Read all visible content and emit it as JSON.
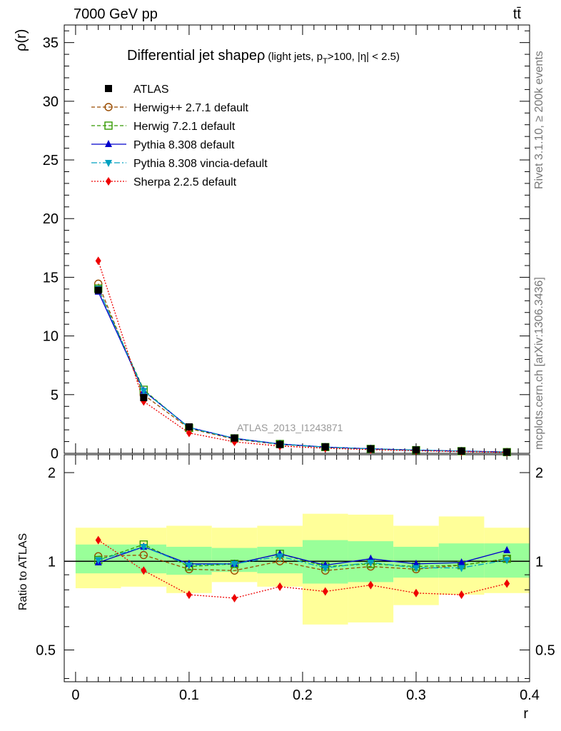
{
  "header": {
    "left": "7000 GeV pp",
    "right": "tt̄"
  },
  "side_text": {
    "rivet": "Rivet 3.1.10, ≥ 200k events",
    "mcplots": "mcplots.cern.ch [arXiv:1306.3436]"
  },
  "title": {
    "main": "Differential jet shape",
    "symbol": "ρ",
    "qualifier_pre": "(light jets, p",
    "qualifier_sub": "T",
    "qualifier_post": ">100, |η| < 2.5)"
  },
  "watermark": "ATLAS_2013_I1243871",
  "chart_data": {
    "type": "scatter",
    "x": [
      0.02,
      0.06,
      0.1,
      0.14,
      0.18,
      0.22,
      0.26,
      0.3,
      0.34,
      0.38
    ],
    "bin_edges": [
      0.0,
      0.04,
      0.08,
      0.12,
      0.16,
      0.2,
      0.24,
      0.28,
      0.32,
      0.36,
      0.4
    ],
    "xlabel": "r",
    "ylabel": "ρ(r)",
    "ratio_ylabel": "Ratio to ATLAS",
    "xlim": [
      -0.01,
      0.4
    ],
    "ylim": [
      0,
      36.5
    ],
    "ratio_ylim": [
      0.39,
      2.3
    ],
    "ratio_log": true,
    "x_ticks": [
      "0",
      "0.1",
      "0.2",
      "0.3",
      "0.4"
    ],
    "x_tick_values": [
      0,
      0.1,
      0.2,
      0.3,
      0.4
    ],
    "y_ticks": [
      0,
      5,
      10,
      15,
      20,
      25,
      30,
      35
    ],
    "ratio_ticks": [
      "0.5",
      "1",
      "2"
    ],
    "ratio_tick_values": [
      0.5,
      1,
      2
    ],
    "reference": {
      "name": "ATLAS",
      "values": [
        13.9,
        4.75,
        2.25,
        1.3,
        0.75,
        0.55,
        0.38,
        0.28,
        0.19,
        0.1
      ],
      "band_stat": [
        [
          0.91,
          1.14
        ],
        [
          0.91,
          1.14
        ],
        [
          0.9,
          1.12
        ],
        [
          0.92,
          1.11
        ],
        [
          0.91,
          1.12
        ],
        [
          0.84,
          1.18
        ],
        [
          0.85,
          1.17
        ],
        [
          0.88,
          1.12
        ],
        [
          0.88,
          1.15
        ],
        [
          0.88,
          1.15
        ]
      ],
      "band_total": [
        [
          0.81,
          1.3
        ],
        [
          0.82,
          1.3
        ],
        [
          0.78,
          1.32
        ],
        [
          0.85,
          1.3
        ],
        [
          0.82,
          1.32
        ],
        [
          0.61,
          1.45
        ],
        [
          0.62,
          1.44
        ],
        [
          0.71,
          1.32
        ],
        [
          0.77,
          1.42
        ],
        [
          0.78,
          1.3
        ]
      ]
    },
    "series": [
      {
        "name": "Herwig++ 2.7.1 default",
        "color": "#994c00",
        "marker": "circle-open",
        "dash": "5,3",
        "ratio": [
          1.04,
          1.05,
          0.94,
          0.93,
          1.0,
          0.93,
          0.96,
          0.94,
          0.97,
          1.02
        ]
      },
      {
        "name": "Herwig 7.2.1 default",
        "color": "#339900",
        "marker": "square-open",
        "dash": "5,3",
        "ratio": [
          1.01,
          1.14,
          0.96,
          0.98,
          1.06,
          0.96,
          0.98,
          0.96,
          0.97,
          1.02
        ]
      },
      {
        "name": "Pythia 8.308 default",
        "color": "#0000cc",
        "marker": "triangle-up",
        "dash": "",
        "ratio": [
          0.99,
          1.12,
          0.98,
          0.98,
          1.06,
          0.97,
          1.02,
          0.98,
          0.99,
          1.09
        ]
      },
      {
        "name": "Pythia 8.308 vincia-default",
        "color": "#00a0c0",
        "marker": "triangle-down",
        "dash": "8,3,2,3",
        "ratio": [
          1.01,
          1.12,
          0.97,
          0.98,
          1.04,
          0.95,
          0.99,
          0.95,
          0.95,
          1.01
        ]
      },
      {
        "name": "Sherpa 2.2.5 default",
        "color": "#ee0000",
        "marker": "diamond",
        "dash": "2,2",
        "ratio": [
          1.18,
          0.93,
          0.77,
          0.75,
          0.82,
          0.79,
          0.83,
          0.78,
          0.77,
          0.84
        ]
      }
    ],
    "band_colors": {
      "total": "#ffff99",
      "stat": "#99ff99"
    },
    "legend_placement": "top-left"
  }
}
